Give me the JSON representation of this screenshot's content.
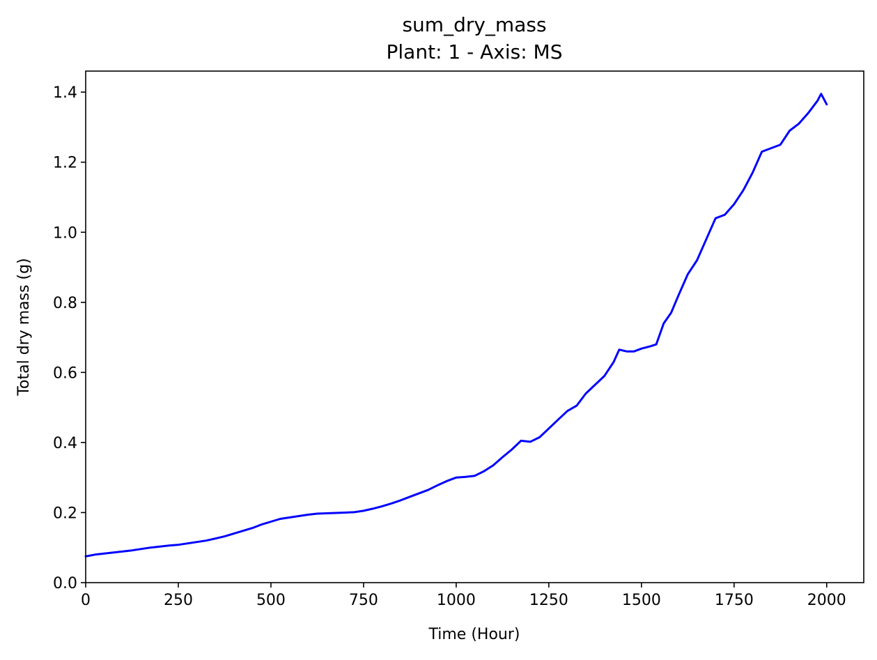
{
  "chart_data": {
    "type": "line",
    "title": "sum_dry_mass",
    "subtitle": "Plant: 1 - Axis: MS",
    "xlabel": "Time (Hour)",
    "ylabel": "Total dry mass (g)",
    "xlim": [
      0,
      2100
    ],
    "ylim": [
      0,
      1.46
    ],
    "xticks": [
      0,
      250,
      500,
      750,
      1000,
      1250,
      1500,
      1750,
      2000
    ],
    "xtick_labels": [
      "0",
      "250",
      "500",
      "750",
      "1000",
      "1250",
      "1500",
      "1750",
      "2000"
    ],
    "yticks": [
      0.0,
      0.2,
      0.4,
      0.6,
      0.8,
      1.0,
      1.2,
      1.4
    ],
    "ytick_labels": [
      "0.0",
      "0.2",
      "0.4",
      "0.6",
      "0.8",
      "1.0",
      "1.2",
      "1.4"
    ],
    "grid": false,
    "legend": "none",
    "line_color": "#0000ff",
    "series": [
      {
        "x": [
          0,
          25,
          50,
          75,
          100,
          125,
          150,
          175,
          200,
          225,
          250,
          275,
          300,
          325,
          350,
          375,
          400,
          425,
          450,
          475,
          500,
          525,
          550,
          575,
          600,
          625,
          650,
          675,
          700,
          725,
          750,
          775,
          800,
          825,
          850,
          875,
          900,
          925,
          950,
          975,
          1000,
          1025,
          1050,
          1075,
          1100,
          1125,
          1150,
          1175,
          1200,
          1225,
          1250,
          1275,
          1300,
          1325,
          1350,
          1375,
          1400,
          1425,
          1440,
          1460,
          1480,
          1500,
          1525,
          1540,
          1560,
          1580,
          1600,
          1625,
          1650,
          1675,
          1700,
          1725,
          1750,
          1775,
          1800,
          1825,
          1850,
          1875,
          1900,
          1925,
          1950,
          1975,
          1985,
          2000
        ],
        "y": [
          0.075,
          0.08,
          0.083,
          0.086,
          0.089,
          0.092,
          0.096,
          0.1,
          0.103,
          0.106,
          0.108,
          0.112,
          0.116,
          0.12,
          0.126,
          0.132,
          0.14,
          0.148,
          0.156,
          0.166,
          0.174,
          0.182,
          0.186,
          0.19,
          0.194,
          0.197,
          0.198,
          0.199,
          0.2,
          0.201,
          0.205,
          0.211,
          0.218,
          0.226,
          0.235,
          0.245,
          0.255,
          0.265,
          0.278,
          0.29,
          0.3,
          0.302,
          0.305,
          0.318,
          0.335,
          0.358,
          0.38,
          0.405,
          0.402,
          0.415,
          0.44,
          0.465,
          0.49,
          0.505,
          0.54,
          0.565,
          0.59,
          0.63,
          0.665,
          0.66,
          0.66,
          0.668,
          0.675,
          0.68,
          0.74,
          0.77,
          0.82,
          0.88,
          0.92,
          0.98,
          1.04,
          1.05,
          1.08,
          1.12,
          1.17,
          1.23,
          1.24,
          1.25,
          1.29,
          1.31,
          1.34,
          1.375,
          1.395,
          1.365
        ]
      }
    ]
  }
}
